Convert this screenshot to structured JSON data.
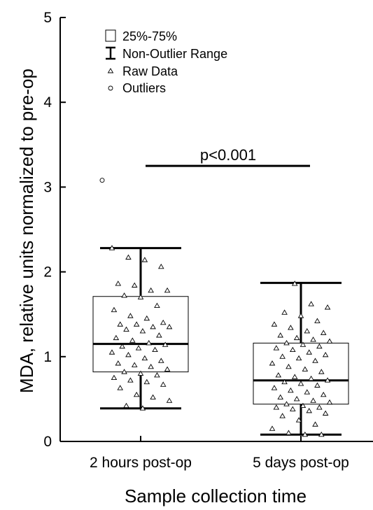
{
  "chart_data": {
    "type": "box",
    "xlabel": "Sample collection time",
    "ylabel": "MDA, relative units normalized to pre-op",
    "ylim": [
      0,
      5
    ],
    "yticks": [
      0,
      1,
      2,
      3,
      4,
      5
    ],
    "categories": [
      "2 hours post-op",
      "5 days post-op"
    ],
    "boxes": [
      {
        "category": "2 hours post-op",
        "q1": 0.82,
        "median": 1.15,
        "q3": 1.71,
        "whisker_low": 0.39,
        "whisker_high": 2.28,
        "outliers": [
          3.08
        ],
        "raw": [
          2.28,
          2.17,
          2.14,
          2.06,
          1.86,
          1.84,
          1.78,
          1.78,
          1.72,
          1.7,
          1.6,
          1.55,
          1.48,
          1.45,
          1.4,
          1.38,
          1.38,
          1.35,
          1.35,
          1.32,
          1.3,
          1.25,
          1.22,
          1.19,
          1.16,
          1.14,
          1.12,
          1.1,
          1.08,
          1.05,
          1.02,
          0.98,
          0.95,
          0.92,
          0.9,
          0.88,
          0.85,
          0.82,
          0.8,
          0.78,
          0.75,
          0.72,
          0.7,
          0.67,
          0.63,
          0.55,
          0.52,
          0.48,
          0.42,
          0.39
        ]
      },
      {
        "category": "5 days post-op",
        "q1": 0.44,
        "median": 0.72,
        "q3": 1.16,
        "whisker_low": 0.08,
        "whisker_high": 1.87,
        "outliers": [],
        "raw": [
          1.86,
          1.62,
          1.58,
          1.52,
          1.48,
          1.42,
          1.38,
          1.34,
          1.3,
          1.28,
          1.25,
          1.22,
          1.2,
          1.18,
          1.16,
          1.14,
          1.12,
          1.1,
          1.08,
          1.05,
          1.02,
          1.0,
          0.98,
          0.95,
          0.92,
          0.88,
          0.85,
          0.82,
          0.78,
          0.76,
          0.74,
          0.72,
          0.7,
          0.68,
          0.66,
          0.63,
          0.6,
          0.58,
          0.55,
          0.52,
          0.5,
          0.48,
          0.46,
          0.44,
          0.42,
          0.4,
          0.4,
          0.38,
          0.36,
          0.33,
          0.3,
          0.25,
          0.2,
          0.15,
          0.1,
          0.08,
          0.08
        ]
      }
    ],
    "annotation": {
      "text": "p<0.001",
      "y": 3.25
    },
    "legend": {
      "position": "top-left",
      "items": [
        "25%-75%",
        "Non-Outlier Range",
        "Raw Data",
        "Outliers"
      ]
    }
  }
}
